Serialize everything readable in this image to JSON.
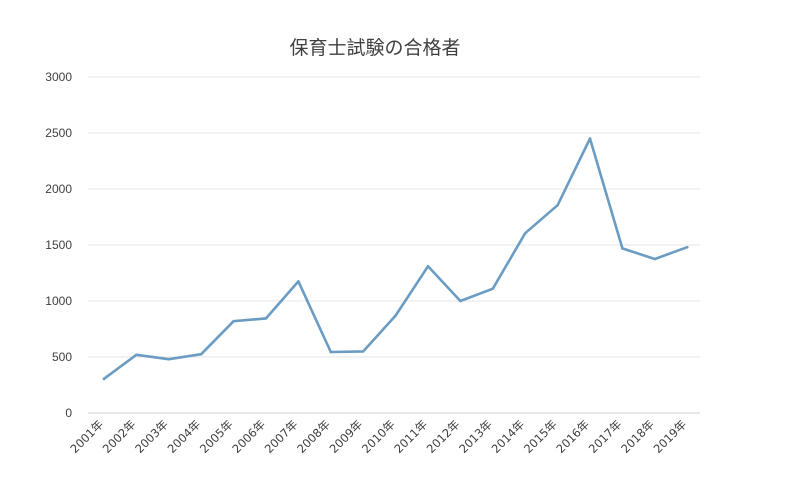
{
  "chart_data": {
    "type": "line",
    "title": "保育士試験の合格者",
    "xlabel": "",
    "ylabel": "",
    "categories": [
      "2001年",
      "2002年",
      "2003年",
      "2004年",
      "2005年",
      "2006年",
      "2007年",
      "2008年",
      "2009年",
      "2010年",
      "2011年",
      "2012年",
      "2013年",
      "2014年",
      "2015年",
      "2016年",
      "2017年",
      "2018年",
      "2019年"
    ],
    "series": [
      {
        "values": [
          305,
          520,
          480,
          525,
          820,
          845,
          1175,
          545,
          550,
          870,
          1310,
          1000,
          1110,
          1605,
          1855,
          2450,
          1470,
          1375,
          1480
        ],
        "color": "#6b9cc3"
      }
    ],
    "ylim": [
      0,
      3000
    ],
    "yticks": [
      0,
      500,
      1000,
      1500,
      2000,
      2500,
      3000
    ],
    "grid": true,
    "legend": "none"
  }
}
